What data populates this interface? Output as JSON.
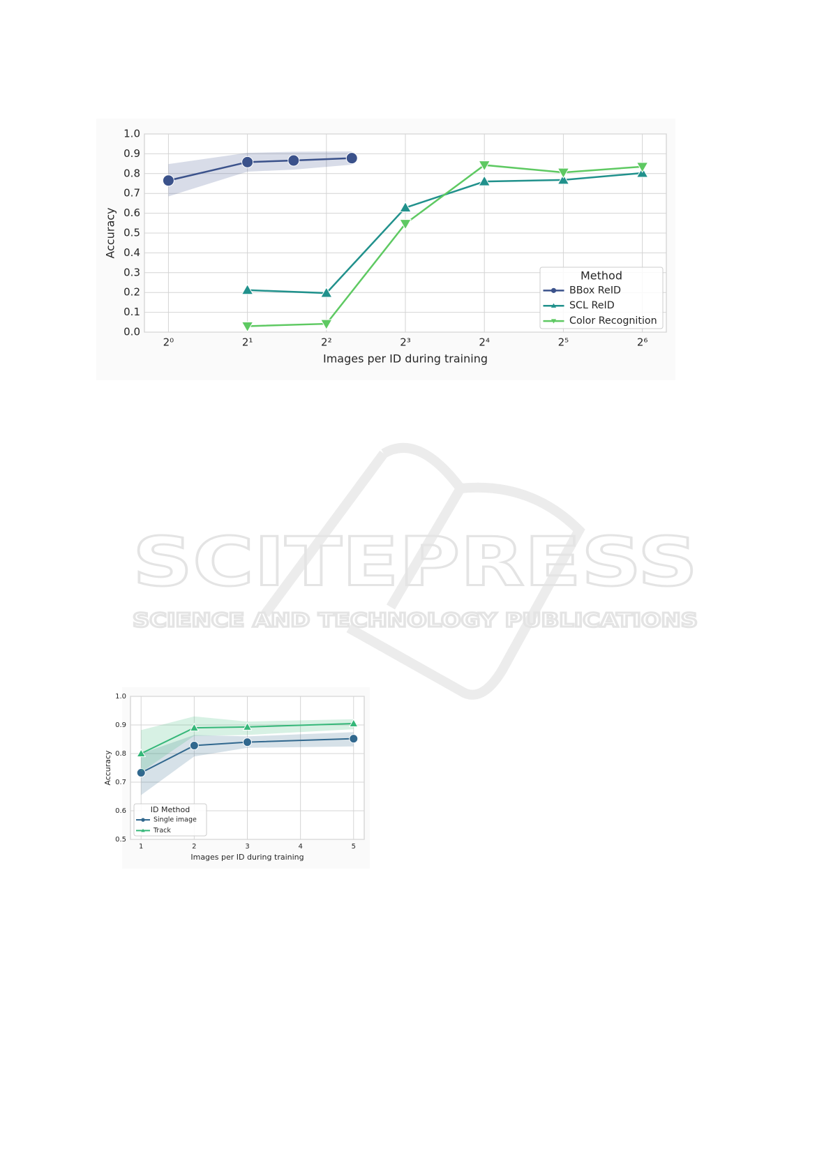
{
  "watermark": {
    "title": "SCITEPRESS",
    "subtitle": "SCIENCE AND TECHNOLOGY PUBLICATIONS"
  },
  "chart_data": [
    {
      "type": "line",
      "xlabel": "Images per ID during training",
      "ylabel": "Accuracy",
      "xscale": "log",
      "xbase": 2,
      "xlim": [
        0.81,
        79
      ],
      "ylim": [
        0,
        1
      ],
      "xticks": [
        {
          "value": 1,
          "label": "2⁰"
        },
        {
          "value": 2,
          "label": "2¹"
        },
        {
          "value": 4,
          "label": "2²"
        },
        {
          "value": 8,
          "label": "2³"
        },
        {
          "value": 16,
          "label": "2⁴"
        },
        {
          "value": 32,
          "label": "2⁵"
        },
        {
          "value": 64,
          "label": "2⁶"
        }
      ],
      "yticks": [
        {
          "value": 0,
          "label": "0.0"
        },
        0.1,
        0.2,
        0.3,
        0.4,
        0.5,
        0.6,
        0.7,
        0.8,
        0.9,
        {
          "value": 1,
          "label": "1.0"
        }
      ],
      "grid": true,
      "legend_title": "Method",
      "legend_position": "lower right",
      "series": [
        {
          "name": "BBox ReID",
          "color": "#3b528b",
          "marker": "circle",
          "x": [
            1,
            2,
            3,
            5
          ],
          "values": [
            0.765,
            0.858,
            0.866,
            0.878
          ],
          "lower": [
            0.685,
            0.81,
            0.82,
            0.845
          ],
          "upper": [
            0.848,
            0.905,
            0.91,
            0.912
          ]
        },
        {
          "name": "SCL ReID",
          "color": "#21918c",
          "marker": "triangle-up",
          "x": [
            2,
            4,
            8,
            16,
            32,
            64
          ],
          "values": [
            0.212,
            0.197,
            0.628,
            0.76,
            0.768,
            0.803
          ]
        },
        {
          "name": "Color Recognition",
          "color": "#5ec962",
          "marker": "triangle-down",
          "x": [
            2,
            4,
            8,
            16,
            32,
            64
          ],
          "values": [
            0.03,
            0.042,
            0.547,
            0.843,
            0.806,
            0.835
          ]
        }
      ]
    },
    {
      "type": "line",
      "xlabel": "Images per ID during training",
      "ylabel": "Accuracy",
      "xlim": [
        0.8,
        5.2
      ],
      "ylim": [
        0.5,
        1
      ],
      "xticks": [
        1,
        2,
        3,
        4,
        5
      ],
      "yticks": [
        0.5,
        0.6,
        0.7,
        0.8,
        0.9,
        {
          "value": 1,
          "label": "1.0"
        }
      ],
      "grid": true,
      "legend_title": "ID Method",
      "legend_position": "lower left",
      "series": [
        {
          "name": "Single image",
          "color": "#31688e",
          "marker": "circle",
          "x": [
            1,
            2,
            3,
            5
          ],
          "values": [
            0.733,
            0.828,
            0.84,
            0.852
          ],
          "lower": [
            0.655,
            0.79,
            0.82,
            0.825
          ],
          "upper": [
            0.8,
            0.865,
            0.86,
            0.875
          ]
        },
        {
          "name": "Track",
          "color": "#35b779",
          "marker": "triangle-up",
          "x": [
            1,
            2,
            3,
            5
          ],
          "values": [
            0.8,
            0.89,
            0.893,
            0.905
          ],
          "lower": [
            0.735,
            0.862,
            0.865,
            0.885
          ],
          "upper": [
            0.882,
            0.93,
            0.912,
            0.92
          ]
        }
      ]
    }
  ]
}
